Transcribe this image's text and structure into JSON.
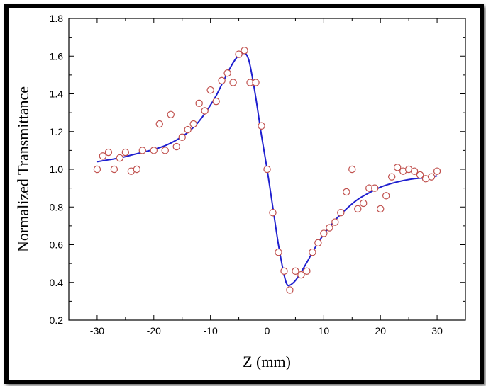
{
  "chart_data": {
    "type": "scatter",
    "xlabel": "Z (mm)",
    "ylabel": "Normalized Transmittance",
    "xlim": [
      -35,
      35
    ],
    "ylim": [
      0.2,
      1.8
    ],
    "xticks": [
      -30,
      -20,
      -10,
      0,
      10,
      20,
      30
    ],
    "yticks": [
      0.2,
      0.4,
      0.6,
      0.8,
      1.0,
      1.2,
      1.4,
      1.6,
      1.8
    ],
    "xtick_labels": [
      "-30",
      "-20",
      "-10",
      "0",
      "10",
      "20",
      "30"
    ],
    "ytick_labels": [
      "0.2",
      "0.4",
      "0.6",
      "0.8",
      "1.0",
      "1.2",
      "1.4",
      "1.6",
      "1.8"
    ],
    "grid": false,
    "colors": {
      "marker": "#c0504d",
      "fit_line": "#1f1fcf"
    },
    "series": [
      {
        "kind": "markers",
        "x": [
          -30,
          -29,
          -28,
          -27,
          -26,
          -25,
          -24,
          -23,
          -22,
          -20,
          -19,
          -18,
          -17,
          -16,
          -15,
          -14,
          -13,
          -12,
          -11,
          -10,
          -9,
          -8,
          -7,
          -6,
          -5,
          -4,
          -3,
          -2,
          -1,
          0,
          1,
          2,
          3,
          4,
          5,
          6,
          7,
          8,
          9,
          10,
          11,
          12,
          13,
          14,
          15,
          16,
          17,
          18,
          19,
          20,
          21,
          22,
          23,
          24,
          25,
          26,
          27,
          28,
          29,
          30
        ],
        "y": [
          1.0,
          1.07,
          1.09,
          1.0,
          1.06,
          1.09,
          0.99,
          1.0,
          1.1,
          1.1,
          1.24,
          1.1,
          1.29,
          1.12,
          1.17,
          1.21,
          1.24,
          1.35,
          1.31,
          1.42,
          1.36,
          1.47,
          1.51,
          1.46,
          1.61,
          1.63,
          1.46,
          1.46,
          1.23,
          1.0,
          0.77,
          0.56,
          0.46,
          0.36,
          0.46,
          0.44,
          0.46,
          0.56,
          0.61,
          0.66,
          0.69,
          0.72,
          0.77,
          0.88,
          1.0,
          0.79,
          0.82,
          0.9,
          0.9,
          0.79,
          0.86,
          0.96,
          1.01,
          0.99,
          1.0,
          0.99,
          0.97,
          0.95,
          0.96,
          0.99
        ]
      },
      {
        "kind": "fit-line",
        "x": [
          -30,
          -28,
          -26,
          -24,
          -22,
          -20,
          -18,
          -16,
          -14,
          -12,
          -10,
          -9,
          -8,
          -7,
          -6,
          -5,
          -4,
          -3.5,
          -3,
          -2,
          -1,
          0,
          1,
          2,
          3,
          3.5,
          4,
          5,
          6,
          7,
          8,
          9,
          10,
          12,
          14,
          16,
          18,
          20,
          22,
          24,
          26,
          28,
          30
        ],
        "y": [
          1.04,
          1.05,
          1.06,
          1.075,
          1.09,
          1.105,
          1.125,
          1.155,
          1.195,
          1.255,
          1.34,
          1.39,
          1.45,
          1.51,
          1.565,
          1.605,
          1.615,
          1.6,
          1.55,
          1.38,
          1.18,
          1.0,
          0.8,
          0.6,
          0.44,
          0.39,
          0.385,
          0.41,
          0.455,
          0.505,
          0.56,
          0.61,
          0.655,
          0.73,
          0.79,
          0.84,
          0.875,
          0.905,
          0.925,
          0.94,
          0.95,
          0.955,
          0.965
        ]
      }
    ]
  }
}
